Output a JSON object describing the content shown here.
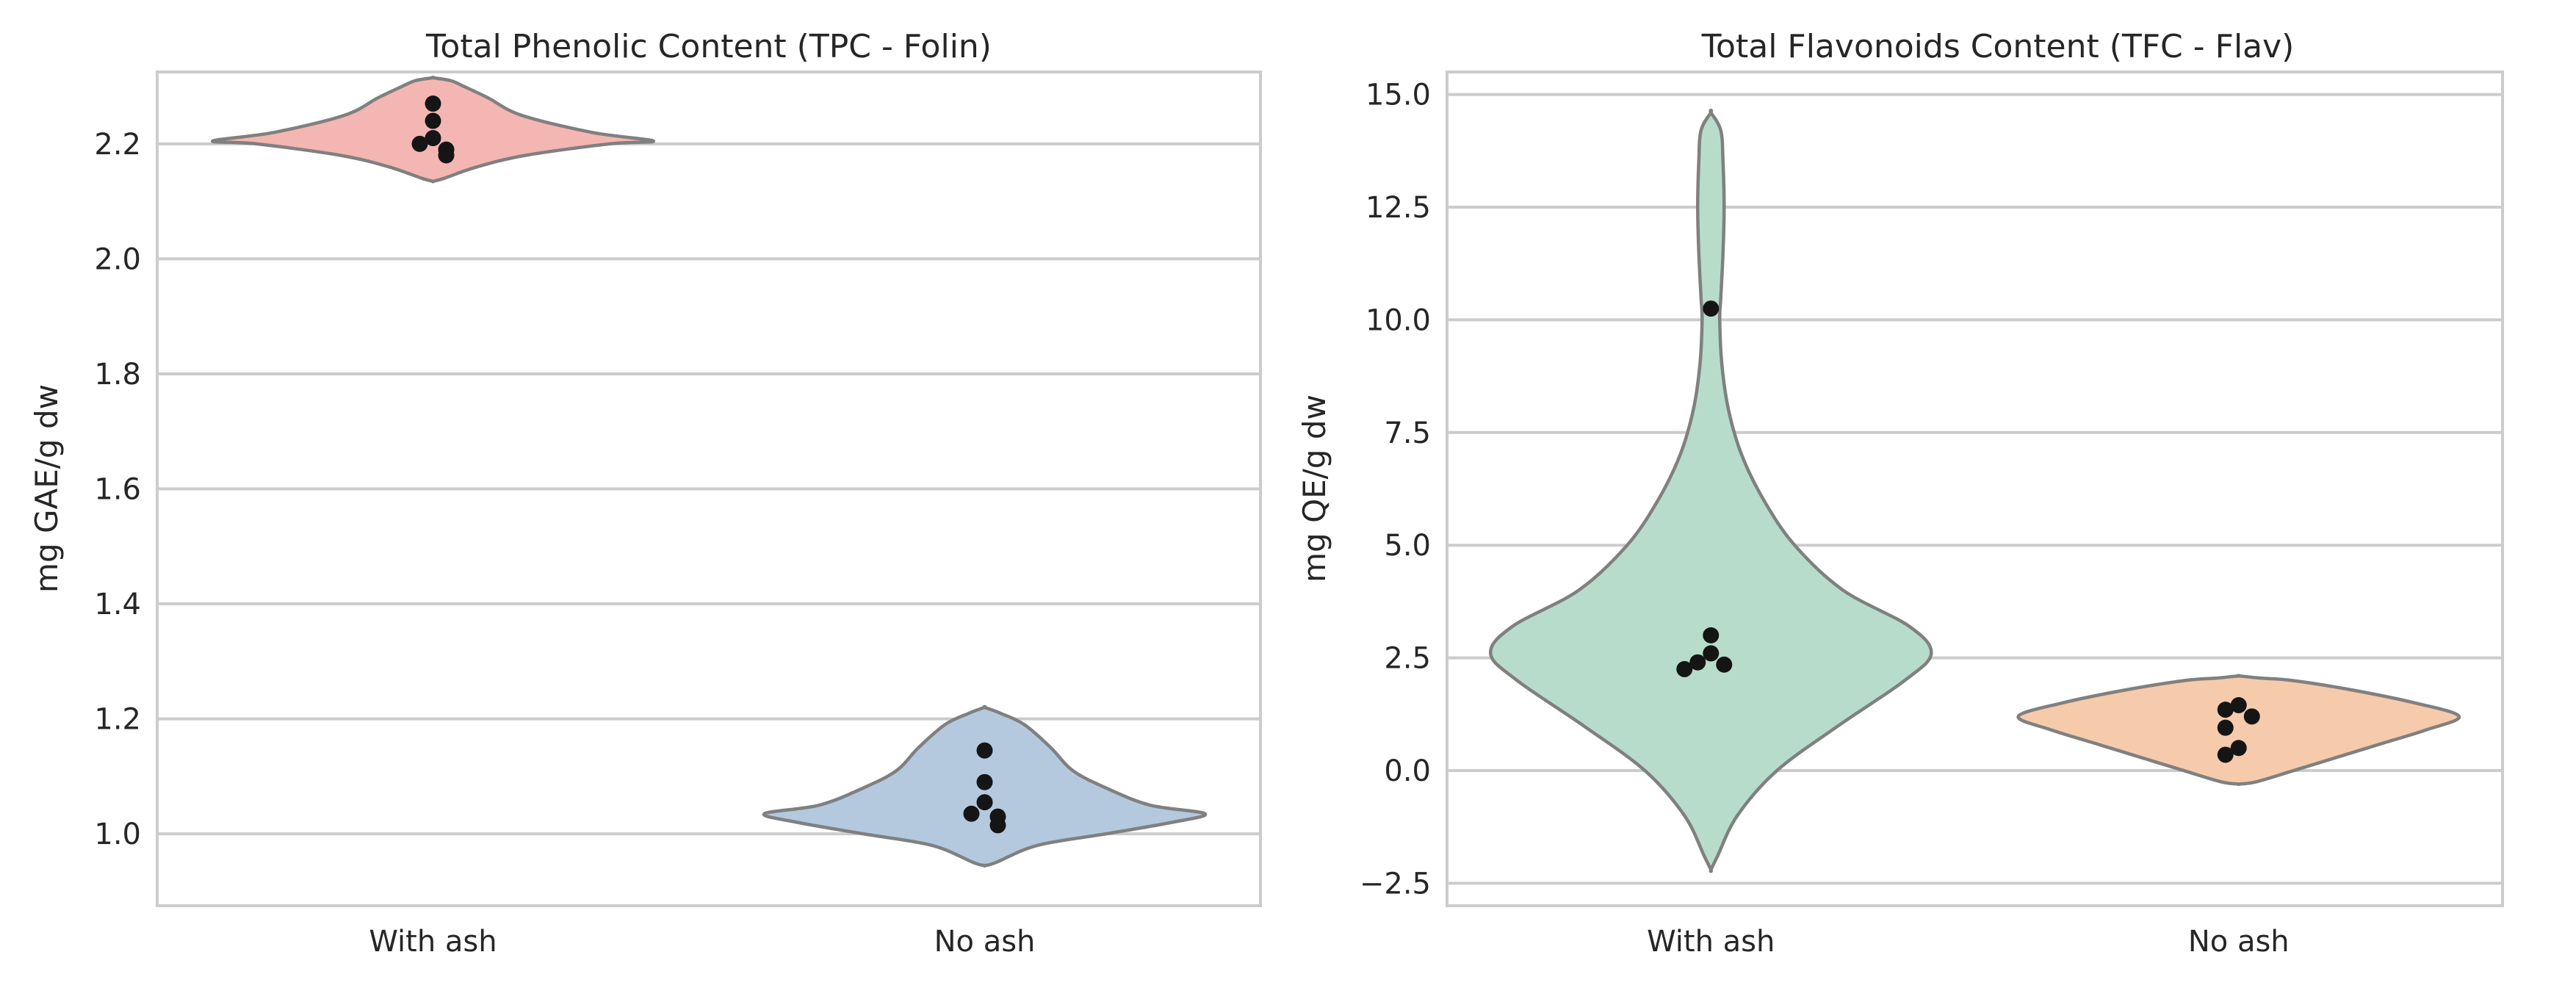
{
  "chart_data": [
    {
      "type": "violin",
      "title": "Total Phenolic Content (TPC - Folin)",
      "xlabel": "",
      "ylabel": "mg GAE/g dw",
      "ylim": [
        0.875,
        2.325
      ],
      "yticks": [
        1.0,
        1.2,
        1.4,
        1.6,
        1.8,
        2.0,
        2.2
      ],
      "ytick_labels": [
        "1.0",
        "1.2",
        "1.4",
        "1.6",
        "1.8",
        "2.0",
        "2.2"
      ],
      "grid": true,
      "categories": [
        "With ash",
        "No ash"
      ],
      "series": [
        {
          "name": "With ash",
          "color": "#f4b6b2",
          "points": [
            2.27,
            2.24,
            2.21,
            2.2,
            2.19,
            2.18
          ],
          "density": [
            [
              2.135,
              0.0
            ],
            [
              2.14,
              0.05
            ],
            [
              2.16,
              0.2
            ],
            [
              2.18,
              0.42
            ],
            [
              2.2,
              0.8
            ],
            [
              2.205,
              1.0
            ],
            [
              2.22,
              0.72
            ],
            [
              2.25,
              0.4
            ],
            [
              2.28,
              0.25
            ],
            [
              2.3,
              0.14
            ],
            [
              2.31,
              0.08
            ],
            [
              2.315,
              0.0
            ]
          ]
        },
        {
          "name": "No ash",
          "color": "#b4c9de",
          "points": [
            1.145,
            1.09,
            1.055,
            1.035,
            1.03,
            1.015
          ],
          "density": [
            [
              0.945,
              0.0
            ],
            [
              0.95,
              0.05
            ],
            [
              0.98,
              0.24
            ],
            [
              1.0,
              0.55
            ],
            [
              1.02,
              0.85
            ],
            [
              1.035,
              1.0
            ],
            [
              1.05,
              0.75
            ],
            [
              1.08,
              0.55
            ],
            [
              1.11,
              0.4
            ],
            [
              1.15,
              0.3
            ],
            [
              1.19,
              0.18
            ],
            [
              1.21,
              0.07
            ],
            [
              1.22,
              0.0
            ]
          ]
        }
      ]
    },
    {
      "type": "violin",
      "title": "Total Flavonoids Content (TFC - Flav)",
      "xlabel": "",
      "ylabel": "mg QE/g dw",
      "ylim": [
        -3.0,
        15.5
      ],
      "yticks": [
        -2.5,
        0.0,
        2.5,
        5.0,
        7.5,
        10.0,
        12.5,
        15.0
      ],
      "ytick_labels": [
        "−2.5",
        "0.0",
        "2.5",
        "5.0",
        "7.5",
        "10.0",
        "12.5",
        "15.0"
      ],
      "grid": true,
      "categories": [
        "With ash",
        "No ash"
      ],
      "series": [
        {
          "name": "With ash",
          "color": "#b8dccc",
          "points": [
            10.25,
            3.0,
            2.6,
            2.4,
            2.35,
            2.25
          ],
          "density": [
            [
              -2.2,
              0.0
            ],
            [
              -1.9,
              0.03
            ],
            [
              -1.0,
              0.12
            ],
            [
              0.0,
              0.3
            ],
            [
              1.0,
              0.58
            ],
            [
              2.0,
              0.88
            ],
            [
              2.6,
              1.0
            ],
            [
              3.2,
              0.9
            ],
            [
              4.0,
              0.6
            ],
            [
              5.0,
              0.38
            ],
            [
              6.0,
              0.24
            ],
            [
              7.0,
              0.14
            ],
            [
              8.0,
              0.08
            ],
            [
              9.0,
              0.05
            ],
            [
              10.0,
              0.04
            ],
            [
              10.5,
              0.045
            ],
            [
              11.5,
              0.055
            ],
            [
              12.5,
              0.06
            ],
            [
              13.5,
              0.055
            ],
            [
              14.2,
              0.045
            ],
            [
              14.6,
              0.0
            ]
          ]
        },
        {
          "name": "No ash",
          "color": "#f5cbac",
          "points": [
            1.45,
            1.35,
            1.2,
            0.95,
            0.5,
            0.35
          ],
          "density": [
            [
              -0.3,
              0.0
            ],
            [
              -0.25,
              0.08
            ],
            [
              0.0,
              0.25
            ],
            [
              0.3,
              0.45
            ],
            [
              0.6,
              0.65
            ],
            [
              0.9,
              0.85
            ],
            [
              1.2,
              1.0
            ],
            [
              1.5,
              0.8
            ],
            [
              1.8,
              0.5
            ],
            [
              2.0,
              0.24
            ],
            [
              2.05,
              0.1
            ],
            [
              2.1,
              0.0
            ]
          ]
        }
      ]
    }
  ]
}
